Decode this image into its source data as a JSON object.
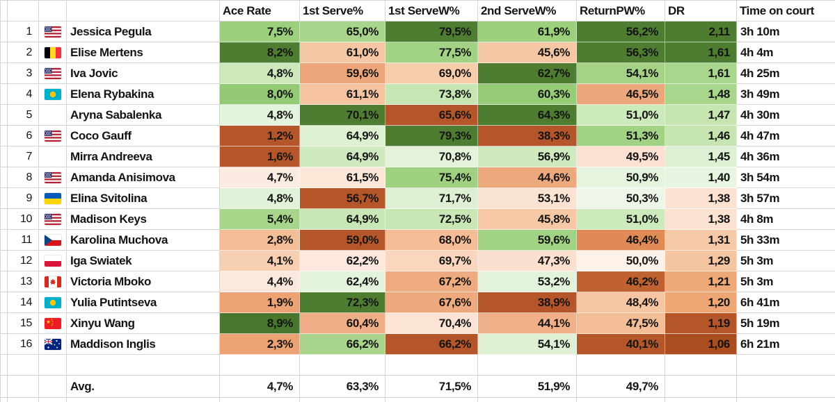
{
  "table": {
    "stat_headers": [
      "Ace Rate",
      "1st Serve%",
      "1st ServeW%",
      "2nd ServeW%",
      "ReturnPW%",
      "DR",
      "Time on court"
    ],
    "stat_keys": [
      "ace-rate",
      "first-serve-pct",
      "first-serve-win-pct",
      "second-serve-win-pct",
      "return-points-won-pct",
      "dominance-ratio"
    ],
    "rows": [
      {
        "rank": "1",
        "country": "us",
        "name": "Jessica Pegula",
        "stats": [
          {
            "v": "7,5%",
            "bg": "#9cd07d"
          },
          {
            "v": "65,0%",
            "bg": "#a8d58b"
          },
          {
            "v": "79,5%",
            "bg": "#4e7d31"
          },
          {
            "v": "61,9%",
            "bg": "#9cd07d"
          },
          {
            "v": "56,2%",
            "bg": "#4e7d31"
          },
          {
            "v": "2,11",
            "bg": "#4e7d31"
          }
        ],
        "time": "3h 10m"
      },
      {
        "rank": "2",
        "country": "be",
        "name": "Elise Mertens",
        "stats": [
          {
            "v": "8,2%",
            "bg": "#4e7d31"
          },
          {
            "v": "61,0%",
            "bg": "#f5c7a4"
          },
          {
            "v": "77,5%",
            "bg": "#a2d384"
          },
          {
            "v": "45,6%",
            "bg": "#f5c7a4"
          },
          {
            "v": "56,3%",
            "bg": "#4e7d31"
          },
          {
            "v": "1,61",
            "bg": "#4e7d31"
          }
        ],
        "time": "4h 4m"
      },
      {
        "rank": "3",
        "country": "us",
        "name": "Iva Jovic",
        "stats": [
          {
            "v": "4,8%",
            "bg": "#cde9bb"
          },
          {
            "v": "59,6%",
            "bg": "#eda77b"
          },
          {
            "v": "69,0%",
            "bg": "#f7cdab"
          },
          {
            "v": "62,7%",
            "bg": "#4e7d31"
          },
          {
            "v": "54,1%",
            "bg": "#a5d287"
          },
          {
            "v": "1,61",
            "bg": "#a8d68c"
          }
        ],
        "time": "4h 25m"
      },
      {
        "rank": "4",
        "country": "kz",
        "name": "Elena Rybakina",
        "stats": [
          {
            "v": "8,0%",
            "bg": "#94ca75"
          },
          {
            "v": "61,1%",
            "bg": "#f5c3a0"
          },
          {
            "v": "73,8%",
            "bg": "#c6e6b3"
          },
          {
            "v": "60,3%",
            "bg": "#96cc77"
          },
          {
            "v": "46,5%",
            "bg": "#eda77c"
          },
          {
            "v": "1,48",
            "bg": "#a8d68c"
          }
        ],
        "time": "3h 49m"
      },
      {
        "rank": "5",
        "country": "",
        "name": "Aryna Sabalenka",
        "stats": [
          {
            "v": "4,8%",
            "bg": "#e4f3db"
          },
          {
            "v": "70,1%",
            "bg": "#4e7d31"
          },
          {
            "v": "65,6%",
            "bg": "#b5562a"
          },
          {
            "v": "64,3%",
            "bg": "#4e7d31"
          },
          {
            "v": "51,0%",
            "bg": "#cdeabd"
          },
          {
            "v": "1,47",
            "bg": "#c6e5b1"
          }
        ],
        "time": "4h 30m"
      },
      {
        "rank": "6",
        "country": "us",
        "name": "Coco Gauff",
        "stats": [
          {
            "v": "1,2%",
            "bg": "#b5562a"
          },
          {
            "v": "64,9%",
            "bg": "#ddf0d2"
          },
          {
            "v": "79,3%",
            "bg": "#4e7d31"
          },
          {
            "v": "38,3%",
            "bg": "#b5562a"
          },
          {
            "v": "51,3%",
            "bg": "#a2d384"
          },
          {
            "v": "1,46",
            "bg": "#c6e5b1"
          }
        ],
        "time": "4h 47m"
      },
      {
        "rank": "7",
        "country": "",
        "name": "Mirra Andreeva",
        "stats": [
          {
            "v": "1,6%",
            "bg": "#b5562a"
          },
          {
            "v": "64,9%",
            "bg": "#cfe9c0"
          },
          {
            "v": "70,8%",
            "bg": "#e3f2d9"
          },
          {
            "v": "56,9%",
            "bg": "#cfeabf"
          },
          {
            "v": "49,5%",
            "bg": "#fbe0d3"
          },
          {
            "v": "1,45",
            "bg": "#def0d3"
          }
        ],
        "time": "4h 36m"
      },
      {
        "rank": "8",
        "country": "us",
        "name": "Amanda Anisimova",
        "stats": [
          {
            "v": "4,7%",
            "bg": "#fcebe0"
          },
          {
            "v": "61,5%",
            "bg": "#fde7d9"
          },
          {
            "v": "75,4%",
            "bg": "#9fd180"
          },
          {
            "v": "44,6%",
            "bg": "#eda97e"
          },
          {
            "v": "50,9%",
            "bg": "#e6f4de"
          },
          {
            "v": "1,40",
            "bg": "#e8f5e0"
          }
        ],
        "time": "3h 54m"
      },
      {
        "rank": "9",
        "country": "ua",
        "name": "Elina Svitolina",
        "stats": [
          {
            "v": "4,8%",
            "bg": "#e2f2d8"
          },
          {
            "v": "56,7%",
            "bg": "#b5562a"
          },
          {
            "v": "71,7%",
            "bg": "#deefd3"
          },
          {
            "v": "53,1%",
            "bg": "#fbe3d4"
          },
          {
            "v": "50,3%",
            "bg": "#eef6e9"
          },
          {
            "v": "1,38",
            "bg": "#fbe2d2"
          }
        ],
        "time": "3h 57m"
      },
      {
        "rank": "10",
        "country": "us",
        "name": "Madison Keys",
        "stats": [
          {
            "v": "5,4%",
            "bg": "#a7d58a"
          },
          {
            "v": "64,9%",
            "bg": "#c9e7b6"
          },
          {
            "v": "72,5%",
            "bg": "#c8e7b5"
          },
          {
            "v": "45,8%",
            "bg": "#f6c8a6"
          },
          {
            "v": "51,0%",
            "bg": "#cdeabd"
          },
          {
            "v": "1,38",
            "bg": "#fbe2d2"
          }
        ],
        "time": "4h 8m"
      },
      {
        "rank": "11",
        "country": "cz",
        "name": "Karolina Muchova",
        "stats": [
          {
            "v": "2,8%",
            "bg": "#f3bd95"
          },
          {
            "v": "59,0%",
            "bg": "#b5562a"
          },
          {
            "v": "68,0%",
            "bg": "#f4bd96"
          },
          {
            "v": "59,6%",
            "bg": "#a2d384"
          },
          {
            "v": "46,4%",
            "bg": "#e08b55"
          },
          {
            "v": "1,31",
            "bg": "#f6c9a8"
          }
        ],
        "time": "5h 33m"
      },
      {
        "rank": "12",
        "country": "pl",
        "name": "Iga Swiatek",
        "stats": [
          {
            "v": "4,1%",
            "bg": "#f7cfb3"
          },
          {
            "v": "62,2%",
            "bg": "#fce8dc"
          },
          {
            "v": "69,7%",
            "bg": "#f9d6bd"
          },
          {
            "v": "47,3%",
            "bg": "#fbe0cf"
          },
          {
            "v": "50,0%",
            "bg": "#fdf2ea"
          },
          {
            "v": "1,29",
            "bg": "#f5c5a1"
          }
        ],
        "time": "5h 3m"
      },
      {
        "rank": "13",
        "country": "ca",
        "name": "Victoria Mboko",
        "stats": [
          {
            "v": "4,4%",
            "bg": "#fce9dd"
          },
          {
            "v": "62,4%",
            "bg": "#e4f3dc"
          },
          {
            "v": "67,2%",
            "bg": "#efab80"
          },
          {
            "v": "53,2%",
            "bg": "#e3f2da"
          },
          {
            "v": "46,2%",
            "bg": "#c0622f"
          },
          {
            "v": "1,21",
            "bg": "#efa878"
          }
        ],
        "time": "5h 3m"
      },
      {
        "rank": "14",
        "country": "kz",
        "name": "Yulia Putintseva",
        "stats": [
          {
            "v": "1,9%",
            "bg": "#eca273"
          },
          {
            "v": "72,3%",
            "bg": "#4e7d31"
          },
          {
            "v": "67,6%",
            "bg": "#eeaa7e"
          },
          {
            "v": "38,9%",
            "bg": "#b5562a"
          },
          {
            "v": "48,4%",
            "bg": "#f6c5a1"
          },
          {
            "v": "1,20",
            "bg": "#eea675"
          }
        ],
        "time": "6h 41m"
      },
      {
        "rank": "15",
        "country": "cn",
        "name": "Xinyu Wang",
        "stats": [
          {
            "v": "8,9%",
            "bg": "#47762c"
          },
          {
            "v": "60,4%",
            "bg": "#efae87"
          },
          {
            "v": "70,4%",
            "bg": "#fbe4d5"
          },
          {
            "v": "44,1%",
            "bg": "#f0b089"
          },
          {
            "v": "47,5%",
            "bg": "#f3bd96"
          },
          {
            "v": "1,19",
            "bg": "#b5562a"
          }
        ],
        "time": "5h 19m"
      },
      {
        "rank": "16",
        "country": "au",
        "name": "Maddison Inglis",
        "stats": [
          {
            "v": "2,3%",
            "bg": "#eca273"
          },
          {
            "v": "66,2%",
            "bg": "#a8d48b"
          },
          {
            "v": "66,2%",
            "bg": "#b5562a"
          },
          {
            "v": "54,1%",
            "bg": "#dff0d5"
          },
          {
            "v": "40,1%",
            "bg": "#b5562a"
          },
          {
            "v": "1,06",
            "bg": "#ab4e1f"
          }
        ],
        "time": "6h 21m"
      }
    ],
    "avg_row": {
      "label": "Avg.",
      "values": [
        "4,7%",
        "63,3%",
        "71,5%",
        "51,9%",
        "49,7%"
      ]
    },
    "colors": {
      "scale_high_green": "#4e7d31",
      "scale_low_orange": "#b5562a",
      "grid_line": "#d4d4d4",
      "text": "#141414"
    }
  }
}
